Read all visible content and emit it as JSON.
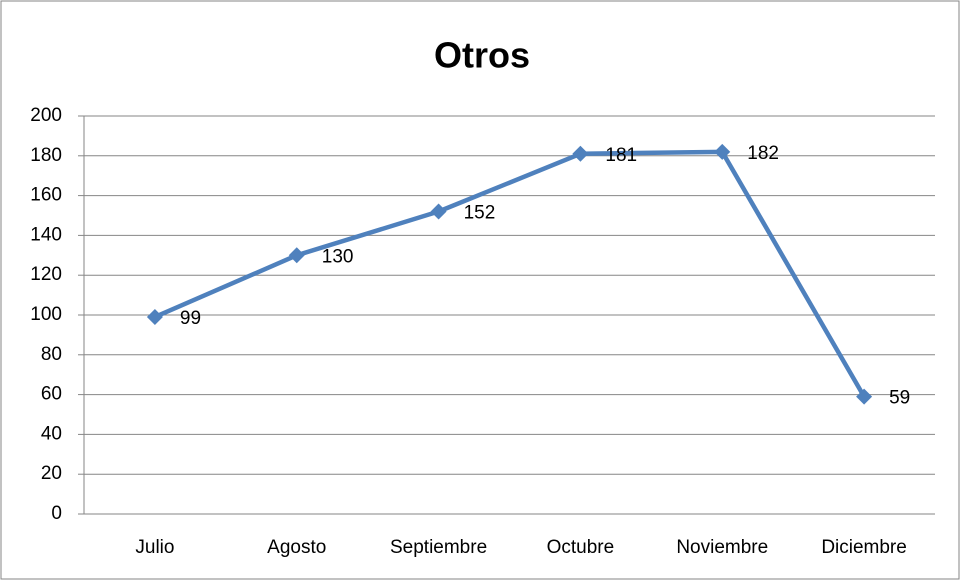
{
  "chart_data": {
    "type": "line",
    "title": "Otros",
    "categories": [
      "Julio",
      "Agosto",
      "Septiembre",
      "Octubre",
      "Noviembre",
      "Diciembre"
    ],
    "values": [
      99,
      130,
      152,
      181,
      182,
      59
    ],
    "color": "#4f81bd",
    "ylim": [
      0,
      200
    ],
    "yticks": [
      0,
      20,
      40,
      60,
      80,
      100,
      120,
      140,
      160,
      180,
      200
    ],
    "grid": true
  }
}
